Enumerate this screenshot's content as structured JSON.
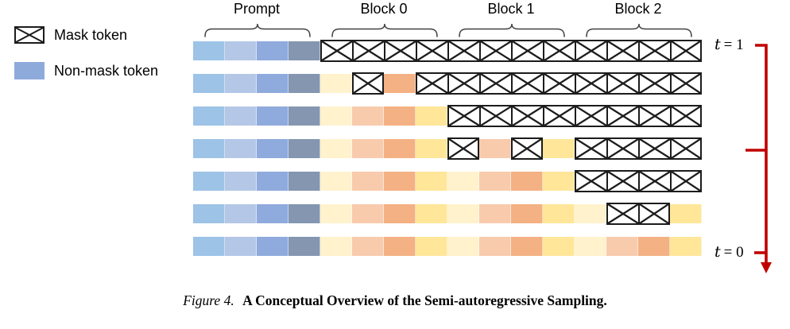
{
  "figure": {
    "legend": {
      "items": [
        {
          "label": "Mask token",
          "type": "mask"
        },
        {
          "label": "Non-mask token",
          "type": "nonmask"
        }
      ]
    },
    "groups": [
      {
        "label": "Prompt"
      },
      {
        "label": "Block 0"
      },
      {
        "label": "Block 1"
      },
      {
        "label": "Block 2"
      }
    ],
    "timeline": {
      "top": {
        "var": "t",
        "rest": "= 1"
      },
      "bottom": {
        "var": "t",
        "rest": "= 0"
      },
      "arrow_color": "#C00000"
    },
    "palette": {
      "prompt": [
        "#9DC3E6",
        "#B4C7E7",
        "#8FAADC",
        "#8496B0"
      ],
      "block": [
        "#FFF2CC",
        "#F8CBAD",
        "#F4B183",
        "#FFE699"
      ],
      "nonmask_legend": "#8EAADB",
      "mask_border": "#1C1C1C"
    },
    "grid": {
      "token_width": 40,
      "rows": [
        [
          "p0",
          "p1",
          "p2",
          "p3",
          "M",
          "M",
          "M",
          "M",
          "M",
          "M",
          "M",
          "M",
          "M",
          "M",
          "M",
          "M"
        ],
        [
          "p0",
          "p1",
          "p2",
          "p3",
          "c0",
          "M",
          "c2",
          "M",
          "M",
          "M",
          "M",
          "M",
          "M",
          "M",
          "M",
          "M"
        ],
        [
          "p0",
          "p1",
          "p2",
          "p3",
          "c0",
          "c1",
          "c2",
          "c3",
          "M",
          "M",
          "M",
          "M",
          "M",
          "M",
          "M",
          "M"
        ],
        [
          "p0",
          "p1",
          "p2",
          "p3",
          "c0",
          "c1",
          "c2",
          "c3",
          "M",
          "c1",
          "M",
          "c3",
          "M",
          "M",
          "M",
          "M"
        ],
        [
          "p0",
          "p1",
          "p2",
          "p3",
          "c0",
          "c1",
          "c2",
          "c3",
          "c0",
          "c1",
          "c2",
          "c3",
          "M",
          "M",
          "M",
          "M"
        ],
        [
          "p0",
          "p1",
          "p2",
          "p3",
          "c0",
          "c1",
          "c2",
          "c3",
          "c0",
          "c1",
          "c2",
          "c3",
          "c0",
          "M",
          "M",
          "c3"
        ],
        [
          "p0",
          "p1",
          "p2",
          "p3",
          "c0",
          "c1",
          "c2",
          "c3",
          "c0",
          "c1",
          "c2",
          "c3",
          "c0",
          "c1",
          "c2",
          "c3"
        ]
      ]
    },
    "caption": {
      "prefix": "Figure 4.",
      "title": "A Conceptual Overview of the Semi-autoregressive Sampling."
    }
  }
}
